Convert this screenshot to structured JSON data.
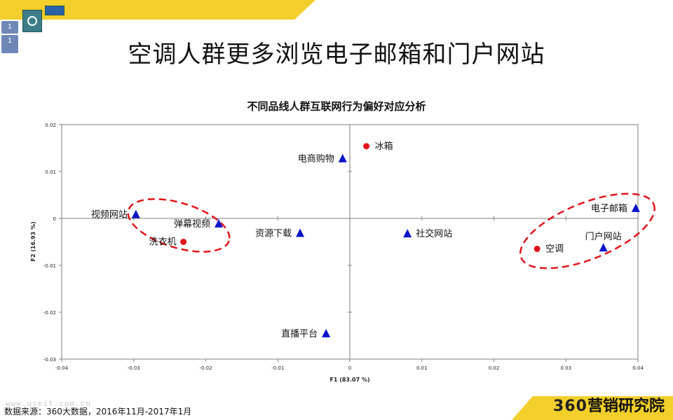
{
  "page": {
    "title": "空调人群更多浏览电子邮箱和门户网站",
    "source": "数据来源：360大数据，2016年11月-2017年1月",
    "watermark": "www.useit.com.cn",
    "brand_number": "360",
    "brand_text": "营销研究院",
    "accent_color": "#f2cf2a"
  },
  "chart_data": {
    "type": "scatter",
    "title": "不同品线人群互联网行为偏好对应分析",
    "xlabel": "F1 (83.07 %)",
    "ylabel": "F2 (16.93 %)",
    "xlim": [
      -0.04,
      0.04
    ],
    "ylim": [
      -0.03,
      0.02
    ],
    "xticks": [
      -0.04,
      -0.03,
      -0.02,
      -0.01,
      0,
      0.01,
      0.02,
      0.03,
      0.04
    ],
    "yticks": [
      0.02,
      0.01,
      0,
      -0.01,
      -0.02,
      -0.03
    ],
    "xtick_labels": [
      "-0.04",
      "-0.03",
      "-0.02",
      "-0.01",
      "0",
      "0.01",
      "0.02",
      "0.03",
      "0.04"
    ],
    "ytick_labels": [
      "0.02",
      "0.01",
      "0",
      "-0.01",
      "-0.02",
      "-0.03"
    ],
    "series": [
      {
        "marker": "circle",
        "color": "#e0141b",
        "points": [
          {
            "label": "冰箱",
            "x": 0.0023,
            "y": 0.0154
          },
          {
            "label": "洗衣机",
            "x": -0.0231,
            "y": -0.005
          },
          {
            "label": "空调",
            "x": 0.026,
            "y": -0.0065
          }
        ]
      },
      {
        "marker": "triangle",
        "color": "#0a14c8",
        "points": [
          {
            "label": "电商购物",
            "x": -0.001,
            "y": 0.0127
          },
          {
            "label": "视频网站",
            "x": -0.0297,
            "y": 0.0008
          },
          {
            "label": "弹幕视频",
            "x": -0.0182,
            "y": -0.0012
          },
          {
            "label": "资源下载",
            "x": -0.0069,
            "y": -0.0032
          },
          {
            "label": "社交网站",
            "x": 0.008,
            "y": -0.0033
          },
          {
            "label": "电子邮箱",
            "x": 0.0397,
            "y": 0.0021
          },
          {
            "label": "门户网站",
            "x": 0.0352,
            "y": -0.0063
          },
          {
            "label": "直播平台",
            "x": -0.0033,
            "y": -0.0246
          }
        ]
      }
    ],
    "annotation_color": "#e0141b",
    "grid": false
  }
}
